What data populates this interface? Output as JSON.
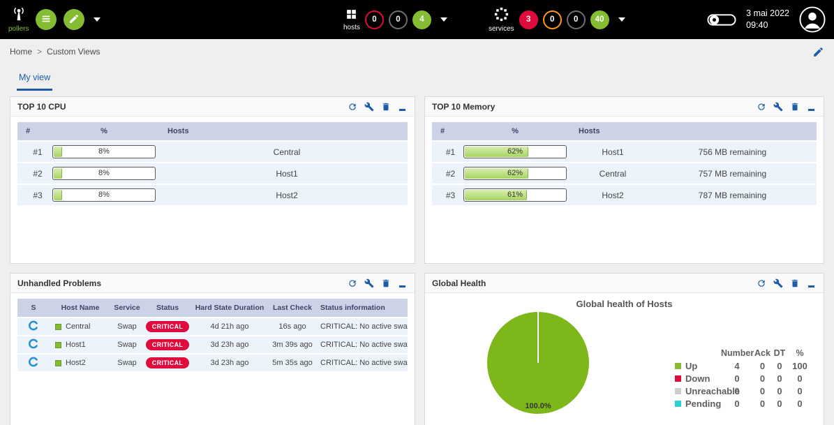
{
  "topbar": {
    "pollers": {
      "label": "pollers"
    },
    "hosts": {
      "label": "hosts",
      "badges": [
        {
          "value": "0",
          "style": "outline-red"
        },
        {
          "value": "0",
          "style": "outline-gray"
        },
        {
          "value": "4",
          "style": "filled-green"
        }
      ]
    },
    "services": {
      "label": "services",
      "badges": [
        {
          "value": "3",
          "style": "filled-red"
        },
        {
          "value": "0",
          "style": "outline-orange"
        },
        {
          "value": "0",
          "style": "outline-gray"
        },
        {
          "value": "40",
          "style": "filled-green"
        }
      ]
    },
    "clock": {
      "date": "3 mai 2022",
      "time": "09:40"
    }
  },
  "breadcrumb": {
    "home": "Home",
    "separator": ">",
    "current": "Custom Views"
  },
  "tabs": {
    "my_view": "My view"
  },
  "icons": [
    "pollers-icon",
    "list-icon",
    "pencil-icon",
    "chevron-down-icon",
    "hosts-icon",
    "services-icon",
    "settings-toggle-icon",
    "user-avatar-icon",
    "edit-icon",
    "refresh-icon",
    "wrench-icon",
    "trash-icon",
    "minimize-icon",
    "centreon-logo-icon"
  ],
  "colors": {
    "brand_green": "#84bd32",
    "pie_green": "#7db71a",
    "critical_red": "#e00b3d",
    "warning_orange": "#ff9a13",
    "pending_cyan": "#2ad1d4",
    "unreachable_gray": "#cdcdcd",
    "icon_blue": "#1d5da8"
  },
  "panels": {
    "cpu": {
      "title": "TOP 10 CPU",
      "columns": [
        "#",
        "%",
        "Hosts"
      ],
      "rows": [
        {
          "rank": "#1",
          "pct": "8%",
          "pct_val": 8,
          "host": "Central"
        },
        {
          "rank": "#2",
          "pct": "8%",
          "pct_val": 8,
          "host": "Host1"
        },
        {
          "rank": "#3",
          "pct": "8%",
          "pct_val": 8,
          "host": "Host2"
        }
      ]
    },
    "memory": {
      "title": "TOP 10 Memory",
      "columns": [
        "#",
        "%",
        "Hosts"
      ],
      "rows": [
        {
          "rank": "#1",
          "pct": "62%",
          "pct_val": 62,
          "host": "Host1",
          "remaining": "756 MB remaining"
        },
        {
          "rank": "#2",
          "pct": "62%",
          "pct_val": 62,
          "host": "Central",
          "remaining": "757 MB remaining"
        },
        {
          "rank": "#3",
          "pct": "61%",
          "pct_val": 61,
          "host": "Host2",
          "remaining": "787 MB remaining"
        }
      ]
    },
    "problems": {
      "title": "Unhandled Problems",
      "columns": [
        "S",
        "Host Name",
        "Service",
        "Status",
        "Hard State Duration",
        "Last Check",
        "Status information"
      ],
      "rows": [
        {
          "host": "Central",
          "service": "Swap",
          "status": "CRITICAL",
          "duration": "4d 21h ago",
          "last_check": "16s ago",
          "info": "CRITICAL: No active swap"
        },
        {
          "host": "Host1",
          "service": "Swap",
          "status": "CRITICAL",
          "duration": "3d 23h ago",
          "last_check": "3m 39s ago",
          "info": "CRITICAL: No active swap"
        },
        {
          "host": "Host2",
          "service": "Swap",
          "status": "CRITICAL",
          "duration": "3d 23h ago",
          "last_check": "5m 35s ago",
          "info": "CRITICAL: No active swap"
        }
      ]
    },
    "health": {
      "title": "Global Health",
      "chart": {
        "type": "pie",
        "title": "Global health of Hosts",
        "pie_label": "100.0%",
        "slices": [
          {
            "label": "Up",
            "value": 100,
            "color": "#7db71a"
          },
          {
            "label": "Down",
            "value": 0,
            "color": "#e00b3d"
          },
          {
            "label": "Unreachable",
            "value": 0,
            "color": "#cdcdcd"
          },
          {
            "label": "Pending",
            "value": 0,
            "color": "#2ad1d4"
          }
        ]
      },
      "legend": {
        "headers": [
          "Number",
          "Ack",
          "DT",
          "%"
        ],
        "rows": [
          {
            "label": "Up",
            "color": "#84bd32",
            "number": "4",
            "ack": "0",
            "dt": "0",
            "pct": "100"
          },
          {
            "label": "Down",
            "color": "#e00b3d",
            "number": "0",
            "ack": "0",
            "dt": "0",
            "pct": "0"
          },
          {
            "label": "Unreachable",
            "color": "#cdcdcd",
            "number": "0",
            "ack": "0",
            "dt": "0",
            "pct": "0"
          },
          {
            "label": "Pending",
            "color": "#2ad1d4",
            "number": "0",
            "ack": "0",
            "dt": "0",
            "pct": "0"
          }
        ]
      }
    }
  }
}
